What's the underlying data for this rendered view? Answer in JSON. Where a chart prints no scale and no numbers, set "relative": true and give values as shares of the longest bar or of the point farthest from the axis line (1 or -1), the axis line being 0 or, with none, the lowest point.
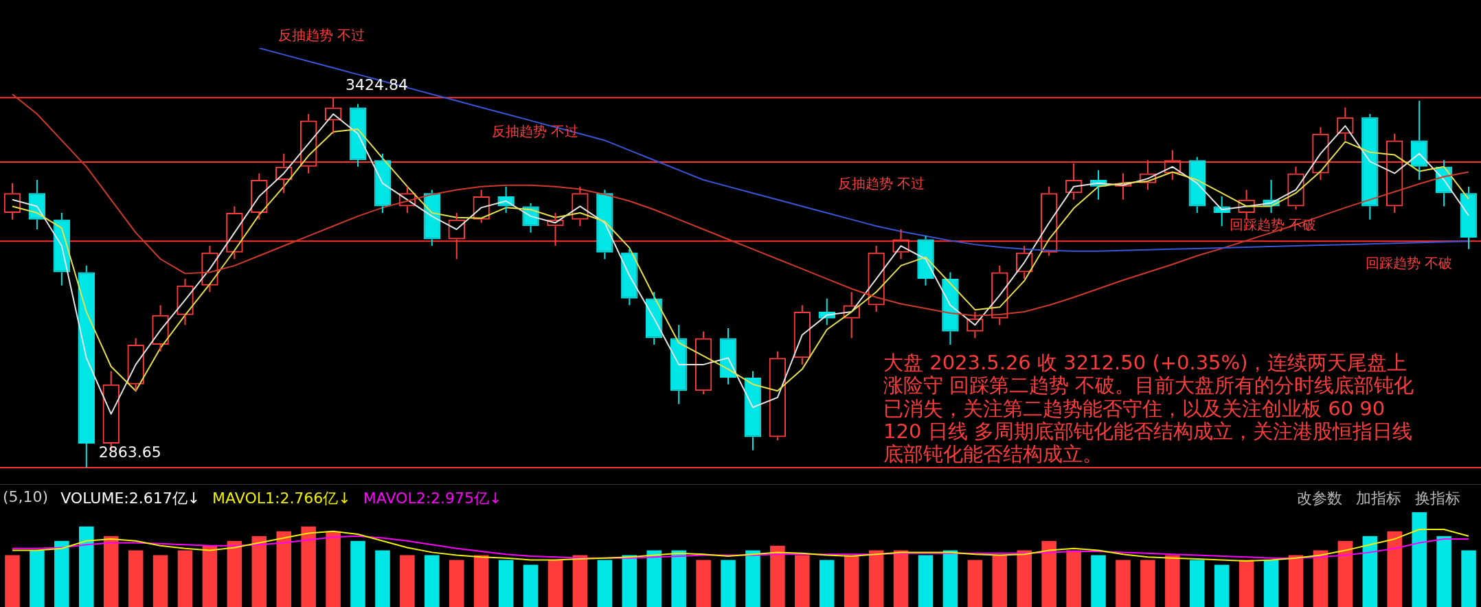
{
  "chart_data": [
    {
      "type": "candlestick",
      "categories": [
        null,
        null,
        null,
        null,
        null,
        null,
        null,
        null,
        null,
        null,
        null,
        null,
        null,
        null,
        null,
        null,
        null,
        null,
        null,
        null,
        null,
        null,
        null,
        null,
        null,
        null,
        null,
        null,
        null,
        null,
        null,
        null,
        null,
        null,
        null,
        null,
        null,
        null,
        null,
        null,
        null,
        null,
        null,
        null,
        null,
        null,
        null,
        null,
        null,
        null,
        null,
        null,
        null,
        null,
        null,
        null,
        null,
        null,
        null,
        null
      ],
      "ohlc": [
        [
          3250,
          3295,
          3240,
          3280
        ],
        [
          3280,
          3300,
          3225,
          3240
        ],
        [
          3240,
          3250,
          3140,
          3160
        ],
        [
          3160,
          3170,
          2863.65,
          2900
        ],
        [
          2900,
          3010,
          2890,
          2990
        ],
        [
          2990,
          3060,
          2980,
          3050
        ],
        [
          3050,
          3110,
          3040,
          3095
        ],
        [
          3095,
          3150,
          3080,
          3140
        ],
        [
          3140,
          3200,
          3130,
          3190
        ],
        [
          3190,
          3260,
          3180,
          3250
        ],
        [
          3250,
          3310,
          3240,
          3300
        ],
        [
          3300,
          3340,
          3280,
          3320
        ],
        [
          3320,
          3400,
          3310,
          3390
        ],
        [
          3390,
          3424.84,
          3370,
          3410
        ],
        [
          3410,
          3415,
          3320,
          3330
        ],
        [
          3330,
          3340,
          3250,
          3260
        ],
        [
          3260,
          3290,
          3250,
          3280
        ],
        [
          3280,
          3285,
          3200,
          3210
        ],
        [
          3210,
          3250,
          3180,
          3240
        ],
        [
          3240,
          3285,
          3235,
          3275
        ],
        [
          3275,
          3290,
          3250,
          3260
        ],
        [
          3260,
          3265,
          3220,
          3230
        ],
        [
          3230,
          3250,
          3200,
          3240
        ],
        [
          3240,
          3290,
          3230,
          3280
        ],
        [
          3280,
          3285,
          3180,
          3190
        ],
        [
          3190,
          3195,
          3110,
          3120
        ],
        [
          3120,
          3130,
          3050,
          3060
        ],
        [
          3060,
          3080,
          2960,
          2980
        ],
        [
          2980,
          3070,
          2975,
          3060
        ],
        [
          3060,
          3075,
          2990,
          3000
        ],
        [
          3000,
          3010,
          2890,
          2910
        ],
        [
          2910,
          3040,
          2905,
          3030
        ],
        [
          3030,
          3110,
          3020,
          3100
        ],
        [
          3100,
          3120,
          3080,
          3090
        ],
        [
          3090,
          3130,
          3060,
          3110
        ],
        [
          3110,
          3200,
          3100,
          3190
        ],
        [
          3190,
          3225,
          3180,
          3210
        ],
        [
          3210,
          3215,
          3140,
          3150
        ],
        [
          3150,
          3160,
          3050,
          3070
        ],
        [
          3070,
          3100,
          3060,
          3090
        ],
        [
          3090,
          3170,
          3080,
          3160
        ],
        [
          3160,
          3200,
          3150,
          3190
        ],
        [
          3190,
          3290,
          3185,
          3280
        ],
        [
          3280,
          3325,
          3270,
          3300
        ],
        [
          3300,
          3315,
          3270,
          3290
        ],
        [
          3290,
          3310,
          3270,
          3295
        ],
        [
          3295,
          3330,
          3285,
          3310
        ],
        [
          3310,
          3345,
          3300,
          3330
        ],
        [
          3330,
          3335,
          3250,
          3260
        ],
        [
          3260,
          3275,
          3230,
          3250
        ],
        [
          3250,
          3285,
          3240,
          3270
        ],
        [
          3270,
          3300,
          3250,
          3260
        ],
        [
          3260,
          3320,
          3255,
          3310
        ],
        [
          3310,
          3380,
          3300,
          3370
        ],
        [
          3370,
          3410,
          3360,
          3395
        ],
        [
          3395,
          3400,
          3240,
          3260
        ],
        [
          3260,
          3370,
          3250,
          3360
        ],
        [
          3360,
          3420,
          3300,
          3320
        ],
        [
          3320,
          3330,
          3260,
          3280
        ],
        [
          3280,
          3290,
          3195,
          3212.5
        ]
      ],
      "colors": [
        "#ff3c3c",
        "#00e5e5",
        "#00e5e5",
        "#00e5e5",
        "#ff3c3c",
        "#ff3c3c",
        "#ff3c3c",
        "#ff3c3c",
        "#ff3c3c",
        "#ff3c3c",
        "#ff3c3c",
        "#ff3c3c",
        "#ff3c3c",
        "#ff3c3c",
        "#00e5e5",
        "#00e5e5",
        "#ff3c3c",
        "#00e5e5",
        "#ff3c3c",
        "#ff3c3c",
        "#00e5e5",
        "#00e5e5",
        "#ff3c3c",
        "#ff3c3c",
        "#00e5e5",
        "#00e5e5",
        "#00e5e5",
        "#00e5e5",
        "#ff3c3c",
        "#00e5e5",
        "#00e5e5",
        "#ff3c3c",
        "#ff3c3c",
        "#00e5e5",
        "#ff3c3c",
        "#ff3c3c",
        "#ff3c3c",
        "#00e5e5",
        "#00e5e5",
        "#ff3c3c",
        "#ff3c3c",
        "#ff3c3c",
        "#ff3c3c",
        "#ff3c3c",
        "#00e5e5",
        "#ff3c3c",
        "#ff3c3c",
        "#ff3c3c",
        "#00e5e5",
        "#00e5e5",
        "#ff3c3c",
        "#00e5e5",
        "#ff3c3c",
        "#ff3c3c",
        "#ff3c3c",
        "#00e5e5",
        "#ff3c3c",
        "#00e5e5",
        "#00e5e5",
        "#00e5e5"
      ],
      "series": [
        {
          "type": "line",
          "color": "#3a55d8",
          "values": [
            null,
            null,
            null,
            null,
            null,
            null,
            null,
            null,
            null,
            null,
            3500,
            3490,
            3480,
            3470,
            3460,
            3450,
            3440,
            3430,
            3420,
            3410,
            3400,
            3390,
            3380,
            3370,
            3360,
            3345,
            3330,
            3315,
            3300,
            3290,
            3280,
            3270,
            3260,
            3250,
            3240,
            3230,
            3222,
            3215,
            3208,
            3202,
            3198,
            3195,
            3193,
            3192,
            3192,
            3193,
            3194,
            3195,
            3196,
            3197,
            3198,
            3199,
            3200,
            3201,
            3202,
            3203,
            3204,
            3205,
            3206,
            3207
          ]
        },
        {
          "type": "line",
          "color": "#d03a2a",
          "values": [
            3430,
            3400,
            3360,
            3320,
            3270,
            3220,
            3180,
            3158,
            3160,
            3170,
            3185,
            3200,
            3215,
            3230,
            3245,
            3258,
            3268,
            3278,
            3285,
            3290,
            3292,
            3292,
            3290,
            3286,
            3278,
            3268,
            3255,
            3240,
            3225,
            3210,
            3195,
            3180,
            3165,
            3150,
            3135,
            3122,
            3112,
            3105,
            3098,
            3094,
            3096,
            3100,
            3110,
            3122,
            3135,
            3148,
            3160,
            3172,
            3185,
            3196,
            3208,
            3220,
            3232,
            3245,
            3258,
            3270,
            3282,
            3294,
            3305,
            3312
          ]
        },
        {
          "type": "line",
          "color": "#e8e04a",
          "values": [
            3260,
            3250,
            3227,
            3100,
            3017,
            2980,
            3045,
            3095,
            3142,
            3193,
            3247,
            3290,
            3337,
            3373,
            3377,
            3333,
            3290,
            3250,
            3243,
            3242,
            3258,
            3255,
            3243,
            3250,
            3237,
            3197,
            3123,
            3053,
            3033,
            3013,
            2990,
            2980,
            3013,
            3073,
            3100,
            3130,
            3170,
            3183,
            3143,
            3103,
            3107,
            3147,
            3210,
            3257,
            3290,
            3295,
            3298,
            3312,
            3300,
            3280,
            3260,
            3260,
            3280,
            3313,
            3358,
            3342,
            3338,
            3313,
            3320,
            3271
          ]
        },
        {
          "type": "line",
          "color": "#e6e6e6",
          "values": [
            3270,
            3260,
            3200,
            3030,
            2945,
            3020,
            3072,
            3118,
            3165,
            3220,
            3275,
            3310,
            3355,
            3400,
            3370,
            3295,
            3270,
            3245,
            3225,
            3258,
            3268,
            3245,
            3235,
            3260,
            3235,
            3155,
            3090,
            3020,
            3020,
            3030,
            2955,
            2970,
            3065,
            3095,
            3100,
            3150,
            3200,
            3180,
            3110,
            3080,
            3125,
            3175,
            3235,
            3290,
            3295,
            3292,
            3302,
            3320,
            3295,
            3255,
            3260,
            3265,
            3285,
            3340,
            3382,
            3328,
            3310,
            3340,
            3300,
            3246
          ]
        }
      ],
      "tick_labels": false,
      "ref_lines": [
        {
          "axis": "y",
          "value": 3424.84,
          "color": "#ff3232"
        },
        {
          "axis": "y",
          "value": 2863.65,
          "color": "#ff3232"
        },
        {
          "axis": "y",
          "value": 3327,
          "color": "#ff3232"
        },
        {
          "axis": "y",
          "value": 3207,
          "color": "#ff3232"
        }
      ],
      "annotations": [
        "反抽趋势 不过",
        "反抽趋势 不过",
        "反抽趋势 不过",
        "回踩趋势 不破",
        "回踩趋势 不破",
        {
          "text": "3424.84",
          "y": 3424.84
        },
        {
          "text": "2863.65",
          "y": 2863.65
        },
        "大盘 2023.5.26 收 3212.50 (+0.35%)，连续两天尾盘上涨险守 回踩第二趋势 不破。目前大盘所有的分时线底部钝化已消失，关注第二趋势能否守住，以及关注创业板 60 90 120 日线 多周期底部钝化能否结构成立，关注港股恒指日线底部钝化能否结构成立。"
      ]
    },
    {
      "type": "bar",
      "relative": true,
      "title": "(5,10)",
      "legend": "top left",
      "categories": [
        null,
        null,
        null,
        null,
        null,
        null,
        null,
        null,
        null,
        null,
        null,
        null,
        null,
        null,
        null,
        null,
        null,
        null,
        null,
        null,
        null,
        null,
        null,
        null,
        null,
        null,
        null,
        null,
        null,
        null,
        null,
        null,
        null,
        null,
        null,
        null,
        null,
        null,
        null,
        null,
        null,
        null,
        null,
        null,
        null,
        null,
        null,
        null,
        null,
        null,
        null,
        null,
        null,
        null,
        null,
        null,
        null,
        null,
        null,
        null
      ],
      "series": [
        {
          "name": "VOLUME:2.617亿↓",
          "colors": [
            "#ff3c3c",
            "#00e5e5",
            "#00e5e5",
            "#00e5e5",
            "#ff3c3c",
            "#ff3c3c",
            "#ff3c3c",
            "#ff3c3c",
            "#ff3c3c",
            "#ff3c3c",
            "#ff3c3c",
            "#ff3c3c",
            "#ff3c3c",
            "#ff3c3c",
            "#00e5e5",
            "#00e5e5",
            "#ff3c3c",
            "#00e5e5",
            "#ff3c3c",
            "#ff3c3c",
            "#00e5e5",
            "#00e5e5",
            "#ff3c3c",
            "#ff3c3c",
            "#00e5e5",
            "#00e5e5",
            "#00e5e5",
            "#00e5e5",
            "#ff3c3c",
            "#00e5e5",
            "#00e5e5",
            "#ff3c3c",
            "#ff3c3c",
            "#00e5e5",
            "#ff3c3c",
            "#ff3c3c",
            "#ff3c3c",
            "#00e5e5",
            "#00e5e5",
            "#ff3c3c",
            "#ff3c3c",
            "#ff3c3c",
            "#ff3c3c",
            "#ff3c3c",
            "#00e5e5",
            "#ff3c3c",
            "#ff3c3c",
            "#ff3c3c",
            "#00e5e5",
            "#00e5e5",
            "#ff3c3c",
            "#00e5e5",
            "#ff3c3c",
            "#ff3c3c",
            "#ff3c3c",
            "#00e5e5",
            "#ff3c3c",
            "#00e5e5",
            "#00e5e5",
            "#00e5e5"
          ],
          "values": [
            0.55,
            0.6,
            0.7,
            0.85,
            0.75,
            0.6,
            0.55,
            0.6,
            0.65,
            0.7,
            0.75,
            0.8,
            0.85,
            0.8,
            0.7,
            0.6,
            0.55,
            0.55,
            0.5,
            0.55,
            0.5,
            0.45,
            0.5,
            0.55,
            0.5,
            0.55,
            0.6,
            0.6,
            0.5,
            0.5,
            0.6,
            0.65,
            0.55,
            0.5,
            0.55,
            0.6,
            0.6,
            0.55,
            0.6,
            0.5,
            0.55,
            0.6,
            0.7,
            0.6,
            0.55,
            0.5,
            0.5,
            0.55,
            0.5,
            0.45,
            0.5,
            0.5,
            0.55,
            0.6,
            0.7,
            0.75,
            0.8,
            1,
            0.75,
            0.6
          ]
        },
        {
          "type": "line",
          "name": "MAVOL1:2.766亿↓",
          "color": "#f0f000",
          "values": [
            0.6,
            0.6,
            0.62,
            0.7,
            0.72,
            0.7,
            0.65,
            0.62,
            0.6,
            0.63,
            0.68,
            0.73,
            0.78,
            0.8,
            0.77,
            0.7,
            0.63,
            0.58,
            0.55,
            0.53,
            0.52,
            0.5,
            0.5,
            0.51,
            0.52,
            0.53,
            0.55,
            0.57,
            0.56,
            0.54,
            0.56,
            0.58,
            0.57,
            0.55,
            0.54,
            0.56,
            0.58,
            0.58,
            0.58,
            0.56,
            0.55,
            0.56,
            0.6,
            0.62,
            0.6,
            0.56,
            0.53,
            0.52,
            0.51,
            0.5,
            0.49,
            0.5,
            0.52,
            0.55,
            0.6,
            0.66,
            0.72,
            0.82,
            0.82,
            0.75
          ]
        },
        {
          "type": "line",
          "name": "MAVOL2:2.975亿↓",
          "color": "#ff00ff",
          "values": [
            0.62,
            0.62,
            0.63,
            0.66,
            0.68,
            0.68,
            0.67,
            0.66,
            0.65,
            0.65,
            0.66,
            0.68,
            0.71,
            0.74,
            0.75,
            0.73,
            0.7,
            0.66,
            0.62,
            0.59,
            0.56,
            0.54,
            0.53,
            0.52,
            0.52,
            0.52,
            0.53,
            0.54,
            0.55,
            0.55,
            0.55,
            0.56,
            0.56,
            0.56,
            0.56,
            0.56,
            0.57,
            0.57,
            0.57,
            0.57,
            0.57,
            0.57,
            0.58,
            0.59,
            0.59,
            0.58,
            0.57,
            0.56,
            0.55,
            0.54,
            0.53,
            0.52,
            0.52,
            0.53,
            0.55,
            0.58,
            0.62,
            0.68,
            0.72,
            0.72
          ]
        }
      ],
      "annotations": [
        "改参数",
        "加指标",
        "换指标"
      ]
    }
  ]
}
